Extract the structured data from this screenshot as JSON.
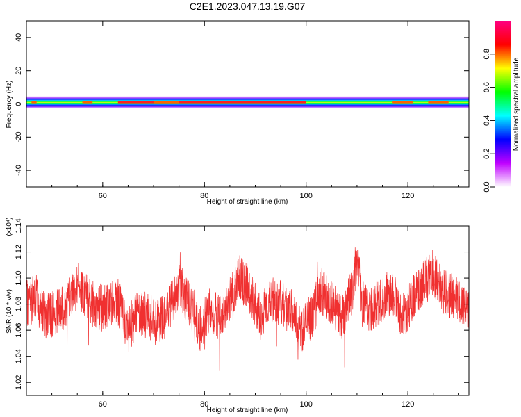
{
  "chart_data": [
    {
      "type": "heatmap",
      "title": "C2E1.2023.047.13.19.G07",
      "xlabel": "Height of straight line (km)",
      "ylabel": "Frequency (Hz)",
      "xlim": [
        45,
        132
      ],
      "ylim": [
        -50,
        50
      ],
      "x_ticks": [
        60,
        80,
        100,
        120
      ],
      "y_ticks": [
        40,
        20,
        0,
        -20,
        -40
      ],
      "band_center_hz": 1,
      "band_halfwidth_hz": 4,
      "colorbar": {
        "label": "Normalized spectral amplitude",
        "range": [
          0,
          1
        ],
        "ticks": [
          "0.0",
          "0.2",
          "0.4",
          "0.6",
          "0.8"
        ],
        "colors": [
          "#ffffff",
          "#c000ff",
          "#0000ff",
          "#00ffff",
          "#00ff00",
          "#ffff00",
          "#ff0000",
          "#ff0080"
        ]
      }
    },
    {
      "type": "line",
      "xlabel": "Height of straight line (km)",
      "ylabel": "SNR (10 * v/v)",
      "y_multiplier": "(x10⁴)",
      "xlim": [
        45,
        132
      ],
      "ylim": [
        1.01,
        1.14
      ],
      "x_ticks": [
        60,
        80,
        100,
        120
      ],
      "y_ticks": [
        "1.02",
        "1.04",
        "1.06",
        "1.08",
        "1.10",
        "1.12",
        "1.14"
      ],
      "color": "#f03030",
      "series": [
        {
          "x": [
            45,
            47,
            49,
            51,
            53,
            55,
            57,
            59,
            61,
            63,
            65,
            67,
            69,
            71,
            73,
            75,
            77,
            79,
            81,
            83,
            85,
            87,
            89,
            91,
            93,
            95,
            97,
            99,
            101,
            103,
            105,
            107,
            109,
            110,
            111,
            113,
            115,
            117,
            119,
            121,
            123,
            125,
            127,
            129,
            131,
            132
          ],
          "y": [
            1.08,
            1.085,
            1.07,
            1.075,
            1.08,
            1.095,
            1.085,
            1.075,
            1.08,
            1.082,
            1.06,
            1.075,
            1.07,
            1.065,
            1.075,
            1.095,
            1.08,
            1.06,
            1.075,
            1.07,
            1.085,
            1.1,
            1.09,
            1.07,
            1.085,
            1.08,
            1.075,
            1.06,
            1.07,
            1.09,
            1.08,
            1.07,
            1.09,
            1.115,
            1.08,
            1.075,
            1.085,
            1.09,
            1.07,
            1.085,
            1.095,
            1.105,
            1.09,
            1.085,
            1.08,
            1.078
          ]
        }
      ]
    }
  ]
}
